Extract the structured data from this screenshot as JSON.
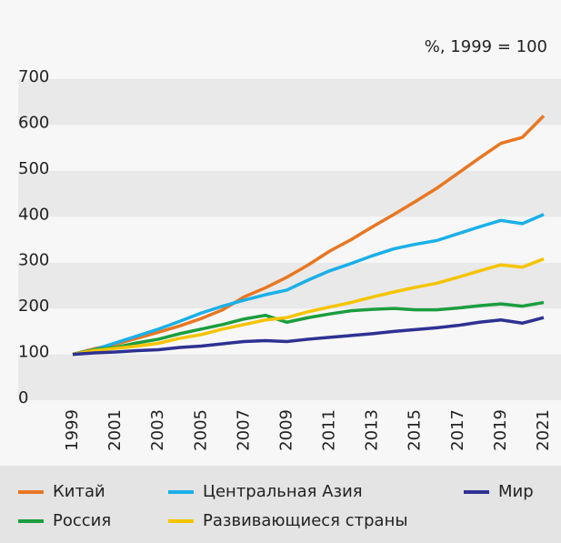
{
  "chart_data": {
    "type": "line",
    "annotation": "%, 1999 = 100",
    "categories": [
      "1999",
      null,
      "2001",
      null,
      "2003",
      null,
      "2005",
      null,
      "2007",
      null,
      "2009",
      null,
      "2011",
      null,
      "2013",
      null,
      "2015",
      null,
      "2017",
      null,
      "2019",
      null,
      "2021"
    ],
    "series": [
      {
        "name": "Китай",
        "color": "#e87722",
        "values": [
          100,
          112,
          122,
          135,
          148,
          162,
          178,
          197,
          225,
          245,
          268,
          295,
          325,
          350,
          378,
          405,
          433,
          462,
          495,
          528,
          560,
          573,
          620
        ]
      },
      {
        "name": "Центральная Азия",
        "color": "#1ab0e8",
        "values": [
          100,
          110,
          125,
          140,
          155,
          172,
          190,
          205,
          218,
          230,
          240,
          262,
          282,
          298,
          315,
          330,
          340,
          348,
          363,
          378,
          392,
          385,
          405
        ]
      },
      {
        "name": "Мир",
        "color": "#2e3192",
        "values": [
          100,
          103,
          105,
          108,
          110,
          115,
          118,
          123,
          128,
          130,
          128,
          133,
          137,
          141,
          145,
          150,
          154,
          158,
          163,
          170,
          175,
          168,
          180
        ]
      },
      {
        "name": "Россия",
        "color": "#1b9e3e",
        "values": [
          100,
          110,
          115,
          125,
          133,
          145,
          155,
          165,
          177,
          185,
          170,
          180,
          188,
          195,
          198,
          200,
          197,
          197,
          201,
          206,
          210,
          205,
          213
        ]
      },
      {
        "name": "Развивающиеся страны",
        "color": "#f5c400",
        "values": [
          100,
          108,
          113,
          118,
          124,
          135,
          143,
          155,
          165,
          175,
          180,
          193,
          203,
          213,
          225,
          236,
          246,
          255,
          268,
          282,
          295,
          290,
          308
        ]
      }
    ],
    "ylim": [
      0,
      700
    ],
    "yticks": [
      0,
      100,
      200,
      300,
      400,
      500,
      600,
      700
    ],
    "bands": true
  }
}
